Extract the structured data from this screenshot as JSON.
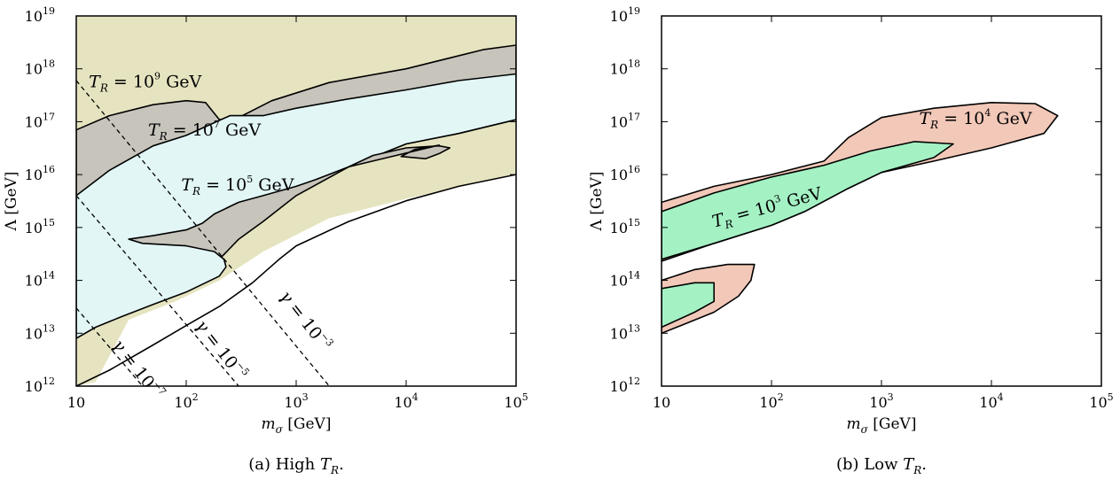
{
  "colors": {
    "tan": "#e6e4c0",
    "gray": "#c6c4bb",
    "cyan": "#e2f6f6",
    "salmon": "#f2c8b8",
    "green": "#a4f2c4",
    "line": "#000000"
  },
  "chart_data": [
    {
      "type": "area",
      "panel": "a",
      "caption": {
        "prefix": "(a) High ",
        "var": "T",
        "sub": "R",
        "suffix": "."
      },
      "xlabel": {
        "var": "m",
        "sub": "σ",
        "unit": " [GeV]"
      },
      "ylabel": "Λ [GeV]",
      "xscale": "log",
      "yscale": "log",
      "xlim": [
        10,
        100000
      ],
      "ylim": [
        1000000000000.0,
        1e+19
      ],
      "xticks": [
        {
          "value": 10,
          "base": "10",
          "exp": ""
        },
        {
          "value": 100,
          "base": "10",
          "exp": "2"
        },
        {
          "value": 1000,
          "base": "10",
          "exp": "3"
        },
        {
          "value": 10000,
          "base": "10",
          "exp": "4"
        },
        {
          "value": 100000,
          "base": "10",
          "exp": "5"
        }
      ],
      "yticks": [
        {
          "value": 1000000000000.0,
          "base": "10",
          "exp": "12"
        },
        {
          "value": 10000000000000.0,
          "base": "10",
          "exp": "13"
        },
        {
          "value": 100000000000000.0,
          "base": "10",
          "exp": "14"
        },
        {
          "value": 1000000000000000.0,
          "base": "10",
          "exp": "15"
        },
        {
          "value": 1e+16,
          "base": "10",
          "exp": "16"
        },
        {
          "value": 1e+17,
          "base": "10",
          "exp": "17"
        },
        {
          "value": 1e+18,
          "base": "10",
          "exp": "18"
        },
        {
          "value": 1e+19,
          "base": "10",
          "exp": "19"
        }
      ],
      "regions": [
        {
          "name": "T_R = 10^9 GeV",
          "color": "tan",
          "outline": false,
          "points": [
            [
              10,
              1e+19
            ],
            [
              100000,
              1e+19
            ],
            [
              100000,
              1e+16
            ],
            [
              10000,
              3500000000000000.0
            ],
            [
              2000,
              1500000000000000.0
            ],
            [
              500,
              350000000000000.0
            ],
            [
              200,
              100000000000000.0
            ],
            [
              80,
              40000000000000.0
            ],
            [
              30,
              18000000000000.0
            ],
            [
              15,
              1200000000000.0
            ],
            [
              10,
              1000000000000.0
            ]
          ]
        },
        {
          "name": "T_R = 10^7 GeV",
          "color": "gray",
          "outline": true,
          "points": [
            [
              10,
              7e+16
            ],
            [
              20,
              1.3e+17
            ],
            [
              50,
              2.1e+17
            ],
            [
              100,
              2.5e+17
            ],
            [
              150,
              2.3e+17
            ],
            [
              200,
              1.1e+17
            ],
            [
              300,
              1.2e+17
            ],
            [
              600,
              2.5e+17
            ],
            [
              2000,
              5.5e+17
            ],
            [
              10000,
              1e+18
            ],
            [
              50000,
              2.3e+18
            ],
            [
              100000,
              2.8e+18
            ],
            [
              100000,
              1.1e+17
            ],
            [
              30000,
              6e+16
            ],
            [
              10000,
              3.8e+16
            ],
            [
              3000,
              1.4e+16
            ],
            [
              1000,
              4000000000000000.0
            ],
            [
              500,
              1300000000000000.0
            ],
            [
              300,
              600000000000000.0
            ],
            [
              200,
              250000000000000.0
            ],
            [
              100,
              120000000000000.0
            ],
            [
              50,
              50000000000000.0
            ],
            [
              25,
              26000000000000.0
            ],
            [
              15,
              16000000000000.0
            ],
            [
              10,
              9000000000000.0
            ]
          ]
        },
        {
          "name": "T_R = 10^5 GeV",
          "color": "cyan",
          "outline": true,
          "points": [
            [
              10,
              4000000000000000.0
            ],
            [
              20,
              1.2e+16
            ],
            [
              50,
              3.5e+16
            ],
            [
              100,
              5.5e+16
            ],
            [
              250,
              1.3e+17
            ],
            [
              500,
              1.3e+17
            ],
            [
              1000,
              1.8e+17
            ],
            [
              3000,
              2.7e+17
            ],
            [
              10000,
              4e+17
            ],
            [
              30000,
              6e+17
            ],
            [
              100000,
              8e+17
            ],
            [
              100000,
              1.1e+17
            ],
            [
              30000,
              6e+16
            ],
            [
              10000,
              3.8e+16
            ],
            [
              3000,
              1.4e+16
            ],
            [
              1500,
              8000000000000000.0
            ],
            [
              1000,
              6000000000000000.0
            ],
            [
              500,
              4000000000000000.0
            ],
            [
              300,
              3000000000000000.0
            ],
            [
              180,
              1800000000000000.0
            ],
            [
              140,
              1200000000000000.0
            ],
            [
              100,
              900000000000000.0
            ],
            [
              50,
              700000000000000.0
            ],
            [
              30,
              600000000000000.0
            ],
            [
              40,
              500000000000000.0
            ],
            [
              100,
              450000000000000.0
            ],
            [
              180,
              350000000000000.0
            ],
            [
              220,
              250000000000000.0
            ],
            [
              230,
              180000000000000.0
            ],
            [
              200,
              120000000000000.0
            ],
            [
              100,
              60000000000000.0
            ],
            [
              50,
              35000000000000.0
            ],
            [
              25,
              20000000000000.0
            ],
            [
              15,
              13000000000000.0
            ],
            [
              10,
              8000000000000.0
            ]
          ]
        },
        {
          "name": "inner gray",
          "color": "gray",
          "outline": true,
          "points": [
            [
              3000,
              1.4e+16
            ],
            [
              5000,
              2.3e+16
            ],
            [
              10000,
              3.2e+16
            ],
            [
              20000,
              3.5e+16
            ],
            [
              25000,
              3.2e+16
            ],
            [
              20000,
              2.5e+16
            ],
            [
              15000,
              2e+16
            ],
            [
              9000,
              2.2e+16
            ],
            [
              12000,
              3e+16
            ],
            [
              20000,
              3.6e+16
            ]
          ]
        },
        {
          "name": "lower boundary",
          "color": "none",
          "outline": true,
          "points": [
            [
              10,
              1000000000000.0
            ],
            [
              20,
              2000000000000.0
            ],
            [
              50,
              6000000000000.0
            ],
            [
              100,
              14000000000000.0
            ],
            [
              200,
              32000000000000.0
            ],
            [
              400,
              90000000000000.0
            ],
            [
              700,
              250000000000000.0
            ],
            [
              1000,
              450000000000000.0
            ],
            [
              3000,
              1300000000000000.0
            ],
            [
              10000,
              3200000000000000.0
            ],
            [
              30000,
              6000000000000000.0
            ],
            [
              100000,
              1e+16
            ]
          ]
        }
      ],
      "dashed_lines": [
        {
          "points": [
            [
              10,
              6e+17
            ],
            [
              2000,
              1000000000000.0
            ]
          ]
        },
        {
          "points": [
            [
              10,
              4000000000000000.0
            ],
            [
              300,
              1000000000000.0
            ]
          ]
        },
        {
          "points": [
            [
              10,
              30000000000000.0
            ],
            [
              40,
              1000000000000.0
            ]
          ]
        }
      ],
      "annotations": [
        {
          "var": "T",
          "sub": "R",
          "text": " = 10",
          "exp": "9",
          "unit": " GeV",
          "at": [
            13,
            4.5e+17
          ],
          "rotate": 0
        },
        {
          "var": "T",
          "sub": "R",
          "text": " = 10",
          "exp": "7",
          "unit": " GeV",
          "at": [
            45,
            5.5e+16
          ],
          "rotate": 0
        },
        {
          "var": "T",
          "sub": "R",
          "text": " = 10",
          "exp": "5",
          "unit": " GeV",
          "at": [
            90,
            5000000000000000.0
          ],
          "rotate": 0
        },
        {
          "var": "γ",
          "sub": "",
          "text": " = 10",
          "exp": "−3",
          "unit": "",
          "at": [
            700,
            50000000000000.0
          ],
          "rotate": 52
        },
        {
          "var": "γ",
          "sub": "",
          "text": " = 10",
          "exp": "−5",
          "unit": "",
          "at": [
            120,
            14000000000000.0
          ],
          "rotate": 52
        },
        {
          "var": "γ",
          "sub": "",
          "text": " = 10",
          "exp": "−7",
          "unit": "",
          "at": [
            21,
            6000000000000.0
          ],
          "rotate": 52
        }
      ]
    },
    {
      "type": "area",
      "panel": "b",
      "caption": {
        "prefix": "(b) Low ",
        "var": "T",
        "sub": "R",
        "suffix": "."
      },
      "xlabel": {
        "var": "m",
        "sub": "σ",
        "unit": " [GeV]"
      },
      "ylabel": "Λ [GeV]",
      "xscale": "log",
      "yscale": "log",
      "xlim": [
        10,
        100000
      ],
      "ylim": [
        1000000000000.0,
        1e+19
      ],
      "xticks": [
        {
          "value": 10,
          "base": "10",
          "exp": ""
        },
        {
          "value": 100,
          "base": "10",
          "exp": "2"
        },
        {
          "value": 1000,
          "base": "10",
          "exp": "3"
        },
        {
          "value": 10000,
          "base": "10",
          "exp": "4"
        },
        {
          "value": 100000,
          "base": "10",
          "exp": "5"
        }
      ],
      "yticks": [
        {
          "value": 1000000000000.0,
          "base": "10",
          "exp": "12"
        },
        {
          "value": 10000000000000.0,
          "base": "10",
          "exp": "13"
        },
        {
          "value": 100000000000000.0,
          "base": "10",
          "exp": "14"
        },
        {
          "value": 1000000000000000.0,
          "base": "10",
          "exp": "15"
        },
        {
          "value": 1e+16,
          "base": "10",
          "exp": "16"
        },
        {
          "value": 1e+17,
          "base": "10",
          "exp": "17"
        },
        {
          "value": 1e+18,
          "base": "10",
          "exp": "18"
        },
        {
          "value": 1e+19,
          "base": "10",
          "exp": "19"
        }
      ],
      "regions": [
        {
          "name": "T_R = 10^4 GeV upper",
          "color": "salmon",
          "outline": true,
          "points": [
            [
              10,
              3000000000000000.0
            ],
            [
              30,
              6000000000000000.0
            ],
            [
              100,
              1e+16
            ],
            [
              300,
              1.8e+16
            ],
            [
              500,
              5e+16
            ],
            [
              1000,
              1.2e+17
            ],
            [
              3000,
              1.8e+17
            ],
            [
              10000,
              2.3e+17
            ],
            [
              25000,
              2.2e+17
            ],
            [
              40000,
              1.3e+17
            ],
            [
              30000,
              6e+16
            ],
            [
              10000,
              3.2e+16
            ],
            [
              3000,
              1.8e+16
            ],
            [
              1000,
              1.1e+16
            ],
            [
              500,
              5500000000000000.0
            ],
            [
              200,
              2000000000000000.0
            ],
            [
              100,
              1100000000000000.0
            ],
            [
              30,
              500000000000000.0
            ],
            [
              10,
              230000000000000.0
            ]
          ]
        },
        {
          "name": "T_R = 10^4 GeV lower",
          "color": "salmon",
          "outline": true,
          "points": [
            [
              10,
              100000000000000.0
            ],
            [
              20,
              160000000000000.0
            ],
            [
              40,
              200000000000000.0
            ],
            [
              70,
              200000000000000.0
            ],
            [
              65,
              100000000000000.0
            ],
            [
              50,
              50000000000000.0
            ],
            [
              30,
              25000000000000.0
            ],
            [
              15,
              14000000000000.0
            ],
            [
              10,
              10000000000000.0
            ]
          ]
        },
        {
          "name": "T_R = 10^3 GeV upper",
          "color": "green",
          "outline": true,
          "points": [
            [
              10,
              2000000000000000.0
            ],
            [
              30,
              4500000000000000.0
            ],
            [
              100,
              9000000000000000.0
            ],
            [
              300,
              1.5e+16
            ],
            [
              800,
              2.8e+16
            ],
            [
              2000,
              4.2e+16
            ],
            [
              4500,
              3.8e+16
            ],
            [
              3000,
              2.1e+16
            ],
            [
              1000,
              1.1e+16
            ],
            [
              500,
              5500000000000000.0
            ],
            [
              200,
              2000000000000000.0
            ],
            [
              100,
              1100000000000000.0
            ],
            [
              30,
              500000000000000.0
            ],
            [
              10,
              250000000000000.0
            ]
          ]
        },
        {
          "name": "T_R = 10^3 GeV lower",
          "color": "green",
          "outline": true,
          "points": [
            [
              10,
              70000000000000.0
            ],
            [
              20,
              90000000000000.0
            ],
            [
              30,
              90000000000000.0
            ],
            [
              30,
              40000000000000.0
            ],
            [
              20,
              25000000000000.0
            ],
            [
              10,
              13000000000000.0
            ]
          ]
        }
      ],
      "dashed_lines": [],
      "annotations": [
        {
          "var": "T",
          "sub": "R",
          "text": " = 10",
          "exp": "4",
          "unit": " GeV",
          "at": [
            2200,
            9e+16
          ],
          "rotate": 0
        },
        {
          "var": "T",
          "sub": "R",
          "text": " = 10",
          "exp": "3",
          "unit": " GeV",
          "at": [
            30,
            1000000000000000.0
          ],
          "rotate": -15
        }
      ]
    }
  ]
}
